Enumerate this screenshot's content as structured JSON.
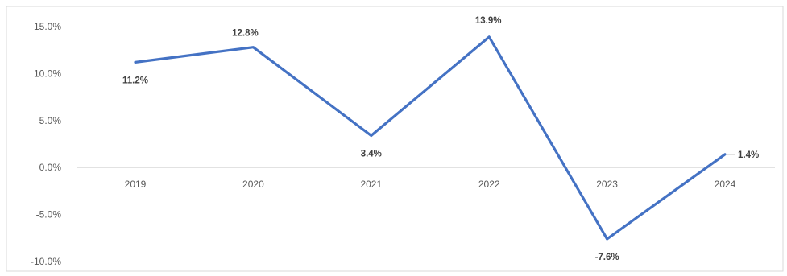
{
  "chart_data": {
    "type": "line",
    "categories": [
      "2019",
      "2020",
      "2021",
      "2022",
      "2023",
      "2024"
    ],
    "series": [
      {
        "values": [
          11.2,
          12.8,
          3.4,
          13.9,
          -7.6,
          1.4
        ],
        "data_labels": [
          "11.2%",
          "12.8%",
          "3.4%",
          "13.9%",
          "-7.6%",
          "1.4%"
        ],
        "color": "#4472c4"
      }
    ],
    "y_ticks": [
      15,
      10,
      5,
      0,
      -5,
      -10
    ],
    "y_tick_labels": [
      "15.0%",
      "10.0%",
      "5.0%",
      "0.0%",
      "-5.0%",
      "-10.0%"
    ],
    "ylim": [
      -10,
      15
    ],
    "title": "",
    "xlabel": "",
    "ylabel": "",
    "grid": false,
    "legend": "none"
  }
}
